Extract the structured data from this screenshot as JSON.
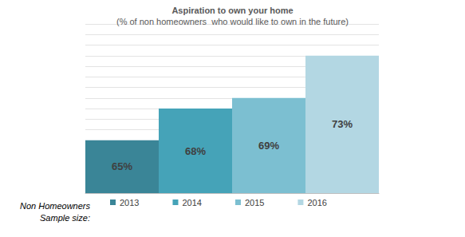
{
  "chart_data": {
    "type": "bar",
    "title": "Aspiration to own your home",
    "subtitle": "(% of non homeowners  who would like to own in the future)",
    "categories": [
      "2013",
      "2014",
      "2015",
      "2016"
    ],
    "values": [
      65,
      68,
      69,
      73
    ],
    "value_labels": [
      "65%",
      "68%",
      "69%",
      "73%"
    ],
    "colors": [
      "#3a8597",
      "#45a3b8",
      "#7cbfd1",
      "#b3d7e3"
    ],
    "ylim": [
      60,
      76
    ],
    "yticks": [
      60,
      61,
      62,
      63,
      64,
      65,
      66,
      67,
      68,
      69,
      70,
      71,
      72,
      73,
      74,
      75,
      76
    ],
    "grid": true,
    "data_labels": true,
    "tick_labels": false,
    "legend": "bottom",
    "annotations": [
      "Non Homeowners",
      "Sample size:"
    ]
  }
}
